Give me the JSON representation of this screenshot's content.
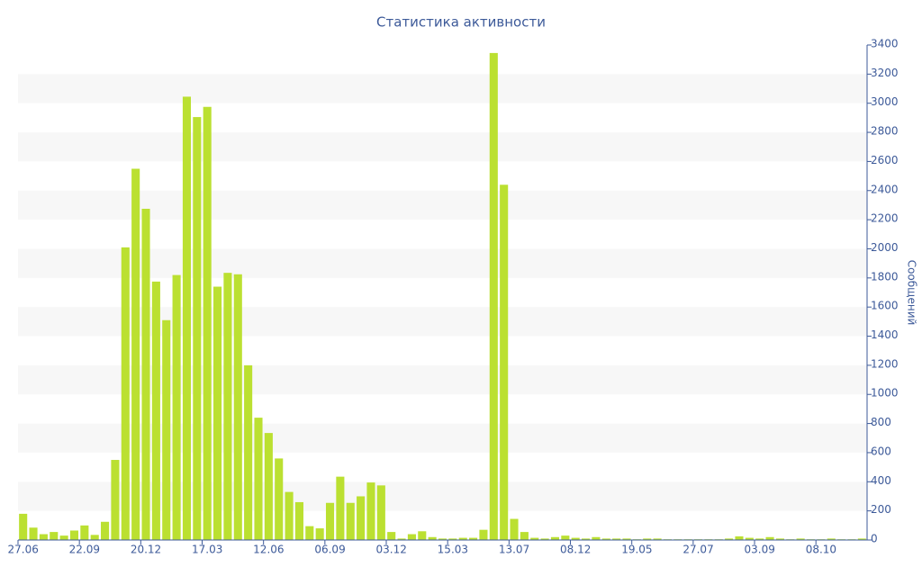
{
  "chart_data": {
    "type": "bar",
    "title": "Статистика активности",
    "y_axis_label": "Сообщений",
    "categories": [
      "27.06",
      null,
      null,
      null,
      null,
      null,
      "22.09",
      null,
      null,
      null,
      null,
      null,
      "20.12",
      null,
      null,
      null,
      null,
      null,
      "17.03",
      null,
      null,
      null,
      null,
      null,
      "12.06",
      null,
      null,
      null,
      null,
      null,
      "06.09",
      null,
      null,
      null,
      null,
      null,
      "03.12",
      null,
      null,
      null,
      null,
      null,
      "15.03",
      null,
      null,
      null,
      null,
      null,
      "13.07",
      null,
      null,
      null,
      null,
      null,
      "08.12",
      null,
      null,
      null,
      null,
      null,
      "19.05",
      null,
      null,
      null,
      null,
      null,
      "27.07",
      null,
      null,
      null,
      null,
      null,
      "03.09",
      null,
      null,
      null,
      null,
      null,
      "08.10",
      null,
      null,
      null,
      null
    ],
    "values": [
      180,
      85,
      40,
      55,
      30,
      65,
      100,
      35,
      125,
      550,
      2010,
      2550,
      2275,
      1775,
      1510,
      1820,
      3045,
      2905,
      2975,
      1740,
      1835,
      1825,
      1200,
      840,
      735,
      560,
      330,
      260,
      95,
      80,
      255,
      435,
      255,
      300,
      395,
      375,
      55,
      10,
      40,
      60,
      20,
      10,
      10,
      15,
      15,
      70,
      3345,
      2440,
      145,
      55,
      15,
      10,
      20,
      30,
      15,
      10,
      20,
      10,
      10,
      10,
      5,
      10,
      10,
      5,
      5,
      5,
      5,
      5,
      5,
      10,
      25,
      15,
      10,
      20,
      10,
      5,
      10,
      5,
      5,
      10,
      5,
      5,
      10
    ],
    "color": "#bbe031",
    "ylim": [
      0,
      3400
    ],
    "yticks": [
      0,
      200,
      400,
      600,
      800,
      1000,
      1200,
      1400,
      1600,
      1800,
      2000,
      2200,
      2400,
      2600,
      2800,
      3000,
      3200,
      3400
    ],
    "grid": "bands",
    "y_axis_side": "right"
  }
}
